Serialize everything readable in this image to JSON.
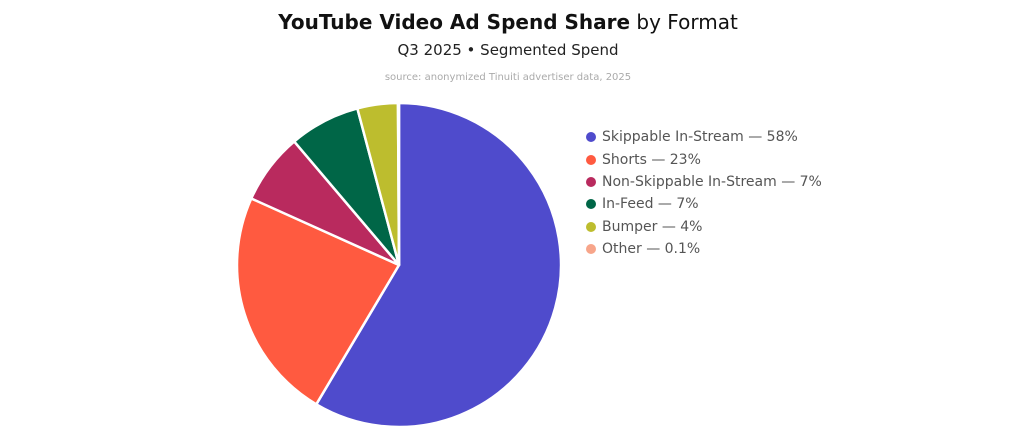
{
  "chart_data": {
    "type": "pie",
    "title_bold": "YouTube Video Ad Spend Share",
    "title_rest": "by Format",
    "subtitle": "Q3 2025 • Segmented Spend",
    "source": "source: anonymized Tinuiti advertiser data, 2025",
    "legend_position": "right",
    "slices": [
      {
        "name": "Skippable In-Stream",
        "label": "Skippable In-Stream — 58%",
        "value": 58,
        "color": "#4f4bcc"
      },
      {
        "name": "Shorts",
        "label": "Shorts — 23%",
        "value": 23,
        "color": "#ff5a40"
      },
      {
        "name": "Non-Skippable In-Stream",
        "label": "Non-Skippable In-Stream — 7%",
        "value": 7,
        "color": "#b92a5e"
      },
      {
        "name": "In-Feed",
        "label": "In-Feed — 7%",
        "value": 7,
        "color": "#006647"
      },
      {
        "name": "Bumper",
        "label": "Bumper — 4%",
        "value": 4,
        "color": "#bdbd2e"
      },
      {
        "name": "Other",
        "label": "Other — 0.1%",
        "value": 0.1,
        "color": "#f7a58a"
      }
    ]
  }
}
